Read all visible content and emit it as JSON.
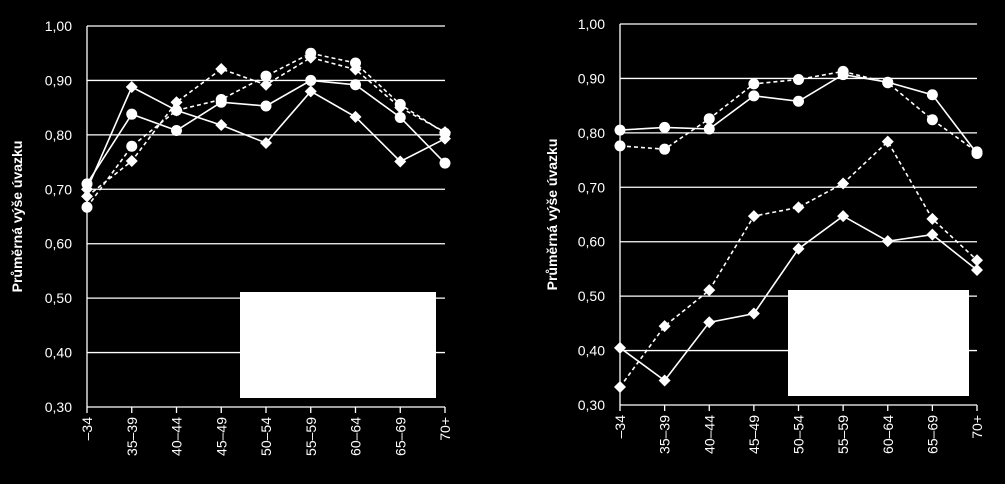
{
  "chart_data": [
    {
      "type": "line",
      "ylabel": "Průměrná výše úvazku",
      "categories": [
        "–34",
        "35–39",
        "40–44",
        "45–49",
        "50–54",
        "55–59",
        "60–64",
        "65–69",
        "70+"
      ],
      "ylim": [
        0.3,
        1.0
      ],
      "yticks": [
        "0,30",
        "0,40",
        "0,50",
        "0,60",
        "0,70",
        "0,80",
        "0,90",
        "1,00"
      ],
      "grid": true,
      "series": [
        {
          "marker": "circle",
          "line": "solid",
          "values": [
            0.71,
            0.838,
            0.808,
            0.86,
            0.853,
            0.9,
            0.892,
            0.832,
            0.748
          ]
        },
        {
          "marker": "circle",
          "line": "dashed",
          "values": [
            0.667,
            0.779,
            0.845,
            0.865,
            0.908,
            0.95,
            0.932,
            0.856,
            0.803
          ]
        },
        {
          "marker": "diamond",
          "line": "solid",
          "values": [
            0.7,
            0.888,
            0.845,
            0.818,
            0.785,
            0.88,
            0.833,
            0.751,
            0.793
          ]
        },
        {
          "marker": "diamond",
          "line": "dashed",
          "values": [
            0.687,
            0.752,
            0.86,
            0.921,
            0.892,
            0.942,
            0.92,
            0.85,
            0.805
          ]
        }
      ]
    },
    {
      "type": "line",
      "ylabel": "Průměrná výše úvazku",
      "categories": [
        "–34",
        "35–39",
        "40–44",
        "45–49",
        "50–54",
        "55–59",
        "60–64",
        "65–69",
        "70+"
      ],
      "ylim": [
        0.3,
        1.0
      ],
      "yticks": [
        "0,30",
        "0,40",
        "0,50",
        "0,60",
        "0,70",
        "0,80",
        "0,90",
        "1,00"
      ],
      "grid": true,
      "series": [
        {
          "marker": "circle",
          "line": "solid",
          "values": [
            0.805,
            0.81,
            0.807,
            0.868,
            0.858,
            0.907,
            0.893,
            0.87,
            0.762
          ]
        },
        {
          "marker": "circle",
          "line": "dashed",
          "values": [
            0.776,
            0.77,
            0.826,
            0.89,
            0.898,
            0.913,
            0.892,
            0.824,
            0.765
          ]
        },
        {
          "marker": "diamond",
          "line": "solid",
          "values": [
            0.405,
            0.345,
            0.452,
            0.468,
            0.587,
            0.647,
            0.601,
            0.613,
            0.548
          ]
        },
        {
          "marker": "diamond",
          "line": "dashed",
          "values": [
            0.333,
            0.445,
            0.511,
            0.647,
            0.663,
            0.707,
            0.784,
            0.642,
            0.566
          ]
        }
      ]
    }
  ],
  "legend_boxes": [
    {
      "placement": "bottom-right"
    },
    {
      "placement": "bottom-right"
    }
  ]
}
